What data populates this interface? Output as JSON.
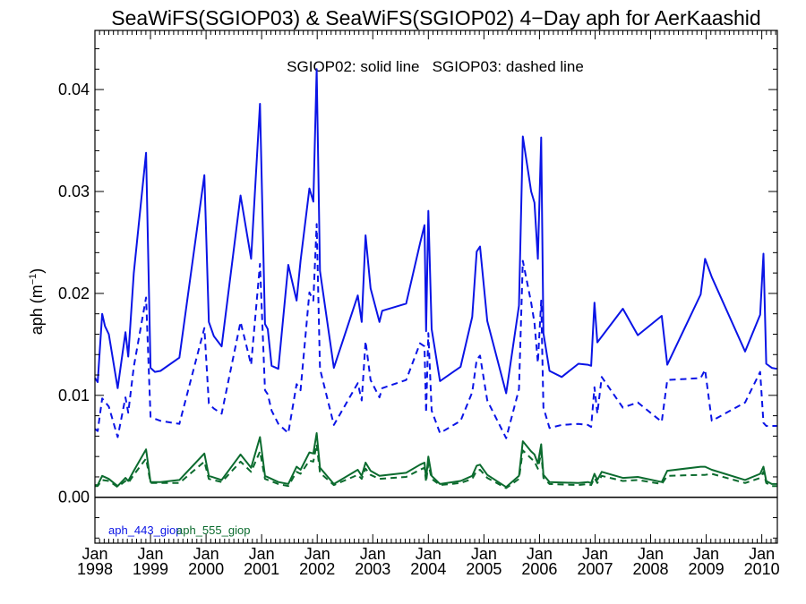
{
  "chart_data": {
    "type": "line",
    "title": "SeaWiFS(SGIOP03) & SeaWiFS(SGIOP02) 4−Day aph for AerKaashid",
    "annotation": "SGIOP02: solid line   SGIOP03: dashed line",
    "ylabel_main": "aph (m",
    "ylabel_sup": "−1",
    "ylabel_close": ")",
    "ylim": [
      -0.0045,
      0.0458
    ],
    "xlim": [
      1998.0,
      2010.28
    ],
    "y_ticks": [
      0.0,
      0.01,
      0.02,
      0.03,
      0.04
    ],
    "y_tick_labels": [
      "0.00",
      "0.01",
      "0.02",
      "0.03",
      "0.04"
    ],
    "x_ticks": [
      {
        "x": 1998,
        "month": "Jan",
        "year": "1998"
      },
      {
        "x": 1999,
        "month": "Jan",
        "year": "1999"
      },
      {
        "x": 2000,
        "month": "Jan",
        "year": "2000"
      },
      {
        "x": 2001,
        "month": "Jan",
        "year": "2001"
      },
      {
        "x": 2002,
        "month": "Jan",
        "year": "2002"
      },
      {
        "x": 2003,
        "month": "Jan",
        "year": "2003"
      },
      {
        "x": 2004,
        "month": "Jan",
        "year": "2004"
      },
      {
        "x": 2005,
        "month": "Jan",
        "year": "2005"
      },
      {
        "x": 2006,
        "month": "Jan",
        "year": "2006"
      },
      {
        "x": 2007,
        "month": "Jan",
        "year": "2007"
      },
      {
        "x": 2008,
        "month": "Jan",
        "year": "2008"
      },
      {
        "x": 2009,
        "month": "Jan",
        "year": "2009"
      },
      {
        "x": 2010,
        "month": "Jan",
        "year": "2010"
      }
    ],
    "zero_line": 0.0,
    "legend": [
      {
        "label": "aph_443_giop",
        "color": "#0a14e6"
      },
      {
        "label": "aph_555_giop",
        "color": "#0b6b2e"
      }
    ],
    "series": [
      {
        "name": "aph_443_giop",
        "color": "#0a14e6",
        "dash": "solid",
        "x": [
          1998.0,
          1998.05,
          1998.13,
          1998.18,
          1998.25,
          1998.41,
          1998.55,
          1998.6,
          1998.7,
          1998.92,
          1999.0,
          1999.08,
          1999.18,
          1999.52,
          1999.97,
          2000.05,
          2000.14,
          2000.28,
          2000.62,
          2000.81,
          2000.97,
          2001.06,
          2001.11,
          2001.18,
          2001.3,
          2001.48,
          2001.63,
          2001.7,
          2001.86,
          2001.93,
          2001.99,
          2002.05,
          2002.3,
          2002.73,
          2002.8,
          2002.87,
          2002.96,
          2003.12,
          2003.17,
          2003.6,
          2003.85,
          2003.93,
          2003.96,
          2004.0,
          2004.06,
          2004.21,
          2004.58,
          2004.79,
          2004.87,
          2004.93,
          2005.06,
          2005.4,
          2005.63,
          2005.7,
          2005.85,
          2005.91,
          2005.97,
          2006.03,
          2006.07,
          2006.18,
          2006.4,
          2006.7,
          2006.87,
          2006.93,
          2006.99,
          2007.04,
          2007.5,
          2007.77,
          2008.2,
          2008.3,
          2008.9,
          2008.98,
          2009.1,
          2009.7,
          2009.97,
          2010.03,
          2010.08,
          2010.18,
          2010.27
        ],
        "y": [
          0.0117,
          0.0113,
          0.018,
          0.0168,
          0.016,
          0.0107,
          0.0162,
          0.0138,
          0.022,
          0.0338,
          0.0127,
          0.0123,
          0.0124,
          0.0137,
          0.0316,
          0.0172,
          0.0158,
          0.0148,
          0.0296,
          0.0234,
          0.0386,
          0.017,
          0.0165,
          0.0129,
          0.0126,
          0.0228,
          0.0193,
          0.0232,
          0.0303,
          0.029,
          0.042,
          0.0222,
          0.0127,
          0.0198,
          0.0172,
          0.0257,
          0.0205,
          0.0172,
          0.0183,
          0.019,
          0.0249,
          0.0267,
          0.0163,
          0.0281,
          0.0165,
          0.0114,
          0.0128,
          0.0177,
          0.0241,
          0.0246,
          0.0173,
          0.0102,
          0.0188,
          0.0354,
          0.03,
          0.0289,
          0.0234,
          0.0353,
          0.0161,
          0.0124,
          0.0118,
          0.0131,
          0.013,
          0.0129,
          0.0191,
          0.0152,
          0.0185,
          0.0159,
          0.0178,
          0.013,
          0.0199,
          0.0234,
          0.0216,
          0.0143,
          0.0179,
          0.0239,
          0.0131,
          0.0127,
          0.0126
        ]
      },
      {
        "name": "aph_443_giop (SGIOP03)",
        "color": "#0a14e6",
        "dash": "dashed",
        "x": [
          1998.0,
          1998.05,
          1998.13,
          1998.25,
          1998.41,
          1998.55,
          1998.6,
          1998.7,
          1998.92,
          1999.0,
          1999.08,
          1999.18,
          1999.52,
          1999.97,
          2000.05,
          2000.14,
          2000.28,
          2000.62,
          2000.81,
          2000.97,
          2001.06,
          2001.11,
          2001.18,
          2001.3,
          2001.48,
          2001.63,
          2001.7,
          2001.86,
          2001.93,
          2001.99,
          2002.05,
          2002.3,
          2002.73,
          2002.8,
          2002.87,
          2002.96,
          2003.12,
          2003.17,
          2003.6,
          2003.85,
          2003.93,
          2003.96,
          2004.0,
          2004.06,
          2004.21,
          2004.58,
          2004.79,
          2004.87,
          2004.93,
          2005.06,
          2005.4,
          2005.63,
          2005.7,
          2005.85,
          2005.91,
          2005.97,
          2006.03,
          2006.07,
          2006.18,
          2006.4,
          2006.7,
          2006.87,
          2006.93,
          2006.99,
          2007.04,
          2007.12,
          2007.5,
          2007.77,
          2008.2,
          2008.3,
          2008.9,
          2008.98,
          2009.1,
          2009.7,
          2009.97,
          2010.03,
          2010.08,
          2010.18,
          2010.27
        ],
        "y": [
          0.0067,
          0.0065,
          0.0097,
          0.0089,
          0.0059,
          0.0098,
          0.0083,
          0.0128,
          0.0196,
          0.0079,
          0.0077,
          0.0075,
          0.0072,
          0.0166,
          0.0092,
          0.0087,
          0.0082,
          0.0172,
          0.013,
          0.0229,
          0.0105,
          0.0101,
          0.0085,
          0.0072,
          0.0063,
          0.0111,
          0.0105,
          0.0201,
          0.0193,
          0.0268,
          0.0126,
          0.0071,
          0.0112,
          0.0095,
          0.0153,
          0.0115,
          0.0098,
          0.0107,
          0.0115,
          0.0151,
          0.0148,
          0.0083,
          0.0161,
          0.0085,
          0.0063,
          0.0075,
          0.0103,
          0.0135,
          0.0139,
          0.0095,
          0.0058,
          0.0106,
          0.0232,
          0.0191,
          0.0171,
          0.0132,
          0.0193,
          0.0088,
          0.0068,
          0.0071,
          0.0072,
          0.0071,
          0.0069,
          0.0108,
          0.0082,
          0.0118,
          0.0088,
          0.0093,
          0.0074,
          0.0115,
          0.0117,
          0.0125,
          0.0075,
          0.0093,
          0.0123,
          0.0073,
          0.007,
          0.007,
          0.007
        ]
      },
      {
        "name": "aph_555_giop",
        "color": "#0b6b2e",
        "dash": "solid",
        "x": [
          1998.0,
          1998.05,
          1998.13,
          1998.25,
          1998.41,
          1998.55,
          1998.6,
          1998.7,
          1998.92,
          1999.0,
          1999.18,
          1999.52,
          1999.97,
          2000.05,
          2000.28,
          2000.62,
          2000.81,
          2000.97,
          2001.06,
          2001.3,
          2001.48,
          2001.63,
          2001.7,
          2001.86,
          2001.93,
          2001.99,
          2002.05,
          2002.3,
          2002.73,
          2002.8,
          2002.87,
          2002.96,
          2003.12,
          2003.6,
          2003.85,
          2003.93,
          2003.96,
          2004.0,
          2004.06,
          2004.21,
          2004.58,
          2004.79,
          2004.87,
          2004.93,
          2005.06,
          2005.4,
          2005.63,
          2005.7,
          2005.85,
          2005.91,
          2005.97,
          2006.03,
          2006.07,
          2006.18,
          2006.7,
          2006.87,
          2006.93,
          2006.99,
          2007.04,
          2007.12,
          2007.5,
          2007.77,
          2008.2,
          2008.3,
          2008.9,
          2008.98,
          2009.1,
          2009.7,
          2009.97,
          2010.03,
          2010.08,
          2010.18,
          2010.27
        ],
        "y": [
          0.0012,
          0.0012,
          0.0021,
          0.0018,
          0.0011,
          0.0019,
          0.0016,
          0.0026,
          0.0047,
          0.0015,
          0.0015,
          0.0017,
          0.0043,
          0.0021,
          0.0017,
          0.0042,
          0.0029,
          0.0059,
          0.0021,
          0.0015,
          0.0013,
          0.003,
          0.0027,
          0.0044,
          0.0043,
          0.0063,
          0.0029,
          0.0013,
          0.0027,
          0.0021,
          0.0034,
          0.0026,
          0.0021,
          0.0024,
          0.0032,
          0.0034,
          0.0018,
          0.004,
          0.0021,
          0.0013,
          0.0016,
          0.0021,
          0.0031,
          0.0032,
          0.0022,
          0.001,
          0.0021,
          0.0055,
          0.0045,
          0.0042,
          0.0033,
          0.0052,
          0.0022,
          0.0015,
          0.0014,
          0.0015,
          0.0014,
          0.0023,
          0.0017,
          0.0025,
          0.0019,
          0.002,
          0.0015,
          0.0026,
          0.003,
          0.003,
          0.0027,
          0.0017,
          0.0023,
          0.003,
          0.0016,
          0.0013,
          0.0013
        ]
      },
      {
        "name": "aph_555_giop (SGIOP03)",
        "color": "#0b6b2e",
        "dash": "dashed",
        "x": [
          1998.0,
          1998.05,
          1998.13,
          1998.25,
          1998.41,
          1998.55,
          1998.6,
          1998.7,
          1998.92,
          1999.0,
          1999.18,
          1999.52,
          1999.97,
          2000.05,
          2000.28,
          2000.62,
          2000.81,
          2000.97,
          2001.06,
          2001.3,
          2001.48,
          2001.63,
          2001.7,
          2001.86,
          2001.93,
          2001.99,
          2002.05,
          2002.3,
          2002.73,
          2002.8,
          2002.87,
          2002.96,
          2003.12,
          2003.6,
          2003.85,
          2003.93,
          2003.96,
          2004.0,
          2004.06,
          2004.21,
          2004.58,
          2004.79,
          2004.87,
          2004.93,
          2005.06,
          2005.4,
          2005.63,
          2005.7,
          2005.85,
          2005.91,
          2005.97,
          2006.03,
          2006.07,
          2006.18,
          2006.7,
          2006.87,
          2006.93,
          2006.99,
          2007.04,
          2007.12,
          2007.5,
          2007.77,
          2008.2,
          2008.3,
          2008.9,
          2008.98,
          2009.1,
          2009.7,
          2009.97,
          2010.03,
          2010.08,
          2010.18,
          2010.27
        ],
        "y": [
          0.0011,
          0.0011,
          0.0017,
          0.0016,
          0.001,
          0.0016,
          0.0014,
          0.0022,
          0.0038,
          0.0014,
          0.0014,
          0.0014,
          0.0035,
          0.0018,
          0.0015,
          0.0035,
          0.0025,
          0.0045,
          0.0018,
          0.0013,
          0.0011,
          0.0025,
          0.0023,
          0.0036,
          0.0035,
          0.0052,
          0.0024,
          0.0012,
          0.0022,
          0.0018,
          0.0028,
          0.0022,
          0.0018,
          0.002,
          0.0027,
          0.0029,
          0.0015,
          0.0033,
          0.0018,
          0.0012,
          0.0014,
          0.0018,
          0.0026,
          0.0027,
          0.0019,
          0.0009,
          0.0018,
          0.0046,
          0.0038,
          0.0035,
          0.0028,
          0.0044,
          0.0019,
          0.0013,
          0.0012,
          0.0013,
          0.0012,
          0.0019,
          0.0014,
          0.0021,
          0.0016,
          0.0017,
          0.0013,
          0.0021,
          0.0022,
          0.0022,
          0.0023,
          0.0014,
          0.0019,
          0.0025,
          0.0014,
          0.0011,
          0.0011
        ]
      }
    ]
  }
}
